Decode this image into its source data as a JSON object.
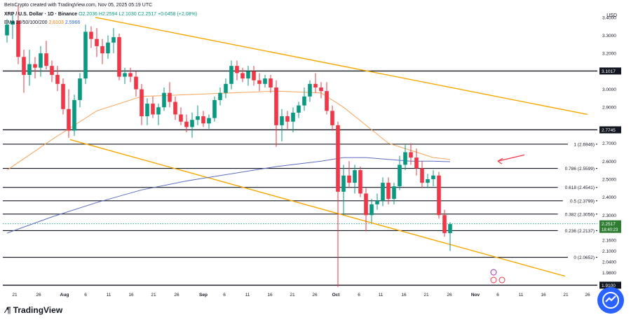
{
  "header": {
    "credit": "BeInCrypto created with TradingView.com, Nov 05, 2025 05:19 UTC",
    "symbol": "XRP / U.S. Dollar · 1D · Binance",
    "open": "O2.2036",
    "high": "H2.2594",
    "low": "L2.1030",
    "close": "C2.2517",
    "change": "+0.0458 (+2.08%)",
    "ma_label": "EMA 20/50/100/200",
    "ma_val_1": "2.6103",
    "ma_val_2": "2.5966"
  },
  "axis_unit": "USD",
  "branding": "TradingView",
  "colors": {
    "up": "#089981",
    "down": "#f23645",
    "trendline": "#f5a800",
    "ema_orange": "#f7a35c",
    "ema_blue": "#5c6bc0",
    "level_line": "#131722",
    "arrow": "#f23645",
    "price_label_bg": "#2e7d32"
  },
  "chart_data": {
    "type": "candlestick",
    "y_axis_ticks": [
      "3.4000",
      "3.3000",
      "3.2000",
      "3.0000",
      "2.9000",
      "2.7000",
      "2.6000",
      "2.5000",
      "2.4000",
      "2.3000",
      "2.1600",
      "2.1000",
      "2.0400",
      "1.9800"
    ],
    "y_axis_tick_values": [
      3.4,
      3.3,
      3.2,
      3.0,
      2.9,
      2.7,
      2.6,
      2.5,
      2.4,
      2.3,
      2.16,
      2.1,
      2.04,
      1.98
    ],
    "x_axis_ticks": [
      "21",
      "26",
      "Aug",
      "6",
      "11",
      "16",
      "21",
      "26",
      "Sep",
      "6",
      "11",
      "16",
      "21",
      "26",
      "Oct",
      "6",
      "11",
      "16",
      "21",
      "26",
      "Nov",
      "6",
      "11",
      "16",
      "21",
      "26"
    ],
    "ylim": [
      1.9,
      3.45
    ],
    "horizontal_levels": [
      {
        "label": "3.1017",
        "value": 3.1017,
        "boxed": true
      },
      {
        "label": "2.7745",
        "value": 2.7745,
        "boxed": true
      },
      {
        "label": "1.9100",
        "value": 1.91,
        "boxed": true
      }
    ],
    "fib_levels": [
      {
        "label": "1 (2.6946)",
        "value": 2.6946
      },
      {
        "label": "0.786 (2.5599)",
        "value": 2.5599
      },
      {
        "label": "0.618 (2.4541)",
        "value": 2.4541
      },
      {
        "label": "0.5 (2.3799)",
        "value": 2.3799
      },
      {
        "label": "0.382 (2.3056)",
        "value": 2.3056
      },
      {
        "label": "0.236 (2.2137)",
        "value": 2.2137
      },
      {
        "label": "0 (2.0652)",
        "value": 2.0652
      }
    ],
    "current_price": {
      "label": "2.2517",
      "value": 2.2517,
      "countdown": "18:40:23"
    },
    "candles": [
      {
        "o": 3.3,
        "h": 3.39,
        "l": 3.26,
        "c": 3.36
      },
      {
        "o": 3.36,
        "h": 3.42,
        "l": 3.28,
        "c": 3.38
      },
      {
        "o": 3.38,
        "h": 3.47,
        "l": 3.14,
        "c": 3.18
      },
      {
        "o": 3.18,
        "h": 3.22,
        "l": 2.98,
        "c": 3.08
      },
      {
        "o": 3.08,
        "h": 3.22,
        "l": 3.02,
        "c": 3.14
      },
      {
        "o": 3.14,
        "h": 3.18,
        "l": 3.06,
        "c": 3.12
      },
      {
        "o": 3.12,
        "h": 3.24,
        "l": 3.07,
        "c": 3.2
      },
      {
        "o": 3.2,
        "h": 3.27,
        "l": 3.11,
        "c": 3.13
      },
      {
        "o": 3.13,
        "h": 3.16,
        "l": 3.04,
        "c": 3.08
      },
      {
        "o": 3.08,
        "h": 3.13,
        "l": 2.99,
        "c": 3.03
      },
      {
        "o": 3.03,
        "h": 3.06,
        "l": 2.86,
        "c": 2.89
      },
      {
        "o": 2.89,
        "h": 3.0,
        "l": 2.73,
        "c": 2.77
      },
      {
        "o": 2.77,
        "h": 2.97,
        "l": 2.74,
        "c": 2.94
      },
      {
        "o": 2.94,
        "h": 3.09,
        "l": 2.9,
        "c": 3.06
      },
      {
        "o": 3.06,
        "h": 3.36,
        "l": 3.03,
        "c": 3.32
      },
      {
        "o": 3.32,
        "h": 3.35,
        "l": 3.23,
        "c": 3.28
      },
      {
        "o": 3.28,
        "h": 3.34,
        "l": 3.18,
        "c": 3.24
      },
      {
        "o": 3.24,
        "h": 3.28,
        "l": 3.14,
        "c": 3.2
      },
      {
        "o": 3.2,
        "h": 3.3,
        "l": 3.17,
        "c": 3.26
      },
      {
        "o": 3.26,
        "h": 3.34,
        "l": 3.2,
        "c": 3.29
      },
      {
        "o": 3.29,
        "h": 3.31,
        "l": 3.05,
        "c": 3.07
      },
      {
        "o": 3.07,
        "h": 3.12,
        "l": 3.03,
        "c": 3.09
      },
      {
        "o": 3.09,
        "h": 3.12,
        "l": 3.04,
        "c": 3.07
      },
      {
        "o": 3.07,
        "h": 3.1,
        "l": 2.96,
        "c": 3.0
      },
      {
        "o": 3.0,
        "h": 3.03,
        "l": 2.8,
        "c": 2.85
      },
      {
        "o": 2.85,
        "h": 2.95,
        "l": 2.8,
        "c": 2.92
      },
      {
        "o": 2.92,
        "h": 2.96,
        "l": 2.84,
        "c": 2.86
      },
      {
        "o": 2.86,
        "h": 2.92,
        "l": 2.8,
        "c": 2.9
      },
      {
        "o": 2.9,
        "h": 3.01,
        "l": 2.88,
        "c": 2.98
      },
      {
        "o": 2.98,
        "h": 3.04,
        "l": 2.9,
        "c": 2.93
      },
      {
        "o": 2.93,
        "h": 2.96,
        "l": 2.83,
        "c": 2.86
      },
      {
        "o": 2.86,
        "h": 2.9,
        "l": 2.8,
        "c": 2.82
      },
      {
        "o": 2.82,
        "h": 2.86,
        "l": 2.76,
        "c": 2.79
      },
      {
        "o": 2.79,
        "h": 2.87,
        "l": 2.73,
        "c": 2.83
      },
      {
        "o": 2.83,
        "h": 2.91,
        "l": 2.8,
        "c": 2.85
      },
      {
        "o": 2.85,
        "h": 2.88,
        "l": 2.79,
        "c": 2.81
      },
      {
        "o": 2.81,
        "h": 2.86,
        "l": 2.78,
        "c": 2.84
      },
      {
        "o": 2.84,
        "h": 2.96,
        "l": 2.82,
        "c": 2.94
      },
      {
        "o": 2.94,
        "h": 3.01,
        "l": 2.91,
        "c": 2.98
      },
      {
        "o": 2.98,
        "h": 3.06,
        "l": 2.95,
        "c": 3.03
      },
      {
        "o": 3.03,
        "h": 3.16,
        "l": 3.0,
        "c": 3.13
      },
      {
        "o": 3.13,
        "h": 3.16,
        "l": 3.05,
        "c": 3.09
      },
      {
        "o": 3.09,
        "h": 3.12,
        "l": 3.04,
        "c": 3.06
      },
      {
        "o": 3.06,
        "h": 3.13,
        "l": 3.02,
        "c": 3.1
      },
      {
        "o": 3.1,
        "h": 3.13,
        "l": 3.02,
        "c": 3.05
      },
      {
        "o": 3.05,
        "h": 3.09,
        "l": 2.99,
        "c": 3.03
      },
      {
        "o": 3.03,
        "h": 3.08,
        "l": 3.01,
        "c": 3.06
      },
      {
        "o": 3.06,
        "h": 3.08,
        "l": 2.98,
        "c": 3.01
      },
      {
        "o": 3.01,
        "h": 3.05,
        "l": 2.68,
        "c": 2.8
      },
      {
        "o": 2.8,
        "h": 2.89,
        "l": 2.71,
        "c": 2.85
      },
      {
        "o": 2.85,
        "h": 2.88,
        "l": 2.78,
        "c": 2.82
      },
      {
        "o": 2.82,
        "h": 2.9,
        "l": 2.76,
        "c": 2.87
      },
      {
        "o": 2.87,
        "h": 2.93,
        "l": 2.84,
        "c": 2.91
      },
      {
        "o": 2.91,
        "h": 3.01,
        "l": 2.88,
        "c": 2.96
      },
      {
        "o": 2.96,
        "h": 3.05,
        "l": 2.93,
        "c": 3.03
      },
      {
        "o": 3.03,
        "h": 3.09,
        "l": 2.98,
        "c": 3.01
      },
      {
        "o": 3.01,
        "h": 3.04,
        "l": 2.95,
        "c": 2.99
      },
      {
        "o": 2.99,
        "h": 3.04,
        "l": 2.86,
        "c": 2.88
      },
      {
        "o": 2.88,
        "h": 2.91,
        "l": 2.77,
        "c": 2.8
      },
      {
        "o": 2.8,
        "h": 2.82,
        "l": 1.9,
        "c": 2.43
      },
      {
        "o": 2.43,
        "h": 2.58,
        "l": 2.3,
        "c": 2.52
      },
      {
        "o": 2.52,
        "h": 2.6,
        "l": 2.45,
        "c": 2.48
      },
      {
        "o": 2.48,
        "h": 2.58,
        "l": 2.42,
        "c": 2.55
      },
      {
        "o": 2.55,
        "h": 2.57,
        "l": 2.4,
        "c": 2.42
      },
      {
        "o": 2.42,
        "h": 2.45,
        "l": 2.21,
        "c": 2.3
      },
      {
        "o": 2.3,
        "h": 2.39,
        "l": 2.26,
        "c": 2.36
      },
      {
        "o": 2.36,
        "h": 2.42,
        "l": 2.33,
        "c": 2.38
      },
      {
        "o": 2.38,
        "h": 2.51,
        "l": 2.35,
        "c": 2.48
      },
      {
        "o": 2.48,
        "h": 2.51,
        "l": 2.36,
        "c": 2.39
      },
      {
        "o": 2.39,
        "h": 2.48,
        "l": 2.36,
        "c": 2.46
      },
      {
        "o": 2.46,
        "h": 2.63,
        "l": 2.44,
        "c": 2.58
      },
      {
        "o": 2.58,
        "h": 2.69,
        "l": 2.55,
        "c": 2.65
      },
      {
        "o": 2.65,
        "h": 2.7,
        "l": 2.58,
        "c": 2.62
      },
      {
        "o": 2.62,
        "h": 2.67,
        "l": 2.52,
        "c": 2.56
      },
      {
        "o": 2.56,
        "h": 2.6,
        "l": 2.45,
        "c": 2.48
      },
      {
        "o": 2.48,
        "h": 2.53,
        "l": 2.45,
        "c": 2.5
      },
      {
        "o": 2.5,
        "h": 2.55,
        "l": 2.46,
        "c": 2.52
      },
      {
        "o": 2.52,
        "h": 2.54,
        "l": 2.28,
        "c": 2.3
      },
      {
        "o": 2.3,
        "h": 2.33,
        "l": 2.18,
        "c": 2.2
      },
      {
        "o": 2.2,
        "h": 2.26,
        "l": 2.1,
        "c": 2.25
      }
    ],
    "ema_orange": [
      [
        0,
        2.55
      ],
      [
        8,
        2.72
      ],
      [
        16,
        2.88
      ],
      [
        24,
        2.96
      ],
      [
        32,
        2.97
      ],
      [
        40,
        2.98
      ],
      [
        48,
        2.99
      ],
      [
        56,
        2.98
      ],
      [
        60,
        2.9
      ],
      [
        64,
        2.8
      ],
      [
        68,
        2.7
      ],
      [
        72,
        2.66
      ],
      [
        76,
        2.62
      ],
      [
        79,
        2.61
      ]
    ],
    "ema_blue": [
      [
        0,
        2.2
      ],
      [
        8,
        2.29
      ],
      [
        16,
        2.37
      ],
      [
        24,
        2.44
      ],
      [
        32,
        2.49
      ],
      [
        40,
        2.53
      ],
      [
        48,
        2.57
      ],
      [
        56,
        2.6
      ],
      [
        60,
        2.62
      ],
      [
        64,
        2.62
      ],
      [
        68,
        2.61
      ],
      [
        72,
        2.6
      ],
      [
        76,
        2.6
      ],
      [
        79,
        2.597
      ]
    ]
  }
}
